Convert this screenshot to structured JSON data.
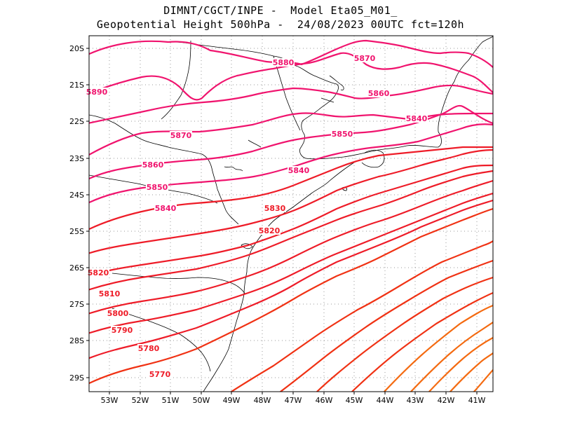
{
  "title": {
    "line1": "DIMNT/CGCT/INPE -  Model Eta05_M01_",
    "line2": "Geopotential Height 500hPa -  24/08/2023 00UTC fct=120h"
  },
  "axes": {
    "lat_labels": [
      "20S",
      "21S",
      "22S",
      "23S",
      "24S",
      "25S",
      "26S",
      "27S",
      "28S",
      "29S"
    ],
    "lon_labels": [
      "53W",
      "52W",
      "51W",
      "50W",
      "49W",
      "48W",
      "47W",
      "46W",
      "45W",
      "44W",
      "43W",
      "42W",
      "41W"
    ]
  },
  "contour_labels": [
    "5890",
    "5880",
    "5870",
    "5870",
    "5860",
    "5860",
    "5850",
    "5850",
    "5840",
    "5840",
    "5840",
    "5830",
    "5820",
    "5820",
    "5810",
    "5800",
    "5790",
    "5780",
    "5770"
  ],
  "colors": {
    "pink": "#f0146e",
    "red": "#ee1c28",
    "orange_red": "#f03214",
    "orange": "#f46a10",
    "coast": "#000000",
    "grid": "#9a9a9a"
  }
}
